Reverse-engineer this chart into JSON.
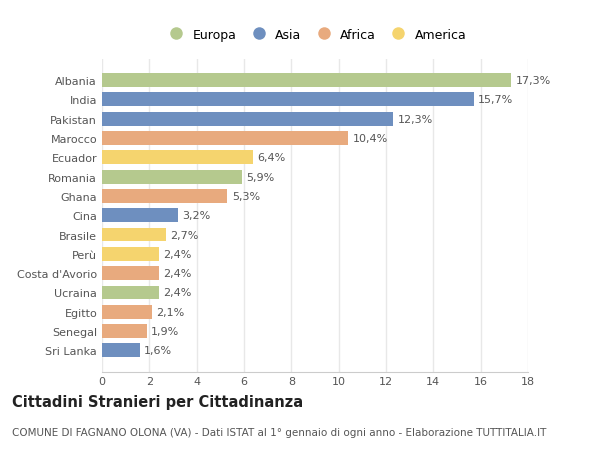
{
  "countries": [
    "Albania",
    "India",
    "Pakistan",
    "Marocco",
    "Ecuador",
    "Romania",
    "Ghana",
    "Cina",
    "Brasile",
    "Perù",
    "Costa d'Avorio",
    "Ucraina",
    "Egitto",
    "Senegal",
    "Sri Lanka"
  ],
  "values": [
    17.3,
    15.7,
    12.3,
    10.4,
    6.4,
    5.9,
    5.3,
    3.2,
    2.7,
    2.4,
    2.4,
    2.4,
    2.1,
    1.9,
    1.6
  ],
  "continents": [
    "Europa",
    "Asia",
    "Asia",
    "Africa",
    "America",
    "Europa",
    "Africa",
    "Asia",
    "America",
    "America",
    "Africa",
    "Europa",
    "Africa",
    "Africa",
    "Asia"
  ],
  "colors": {
    "Europa": "#b5c98e",
    "Asia": "#6e8fbf",
    "Africa": "#e8aa7e",
    "America": "#f5d46e"
  },
  "legend_order": [
    "Europa",
    "Asia",
    "Africa",
    "America"
  ],
  "title": "Cittadini Stranieri per Cittadinanza",
  "subtitle": "COMUNE DI FAGNANO OLONA (VA) - Dati ISTAT al 1° gennaio di ogni anno - Elaborazione TUTTITALIA.IT",
  "xlim": [
    0,
    18
  ],
  "xticks": [
    0,
    2,
    4,
    6,
    8,
    10,
    12,
    14,
    16,
    18
  ],
  "plot_bg_color": "#ffffff",
  "fig_bg_color": "#ffffff",
  "grid_color": "#e8e8e8",
  "bar_height": 0.72,
  "label_fontsize": 8,
  "value_fontsize": 8,
  "title_fontsize": 10.5,
  "subtitle_fontsize": 7.5
}
